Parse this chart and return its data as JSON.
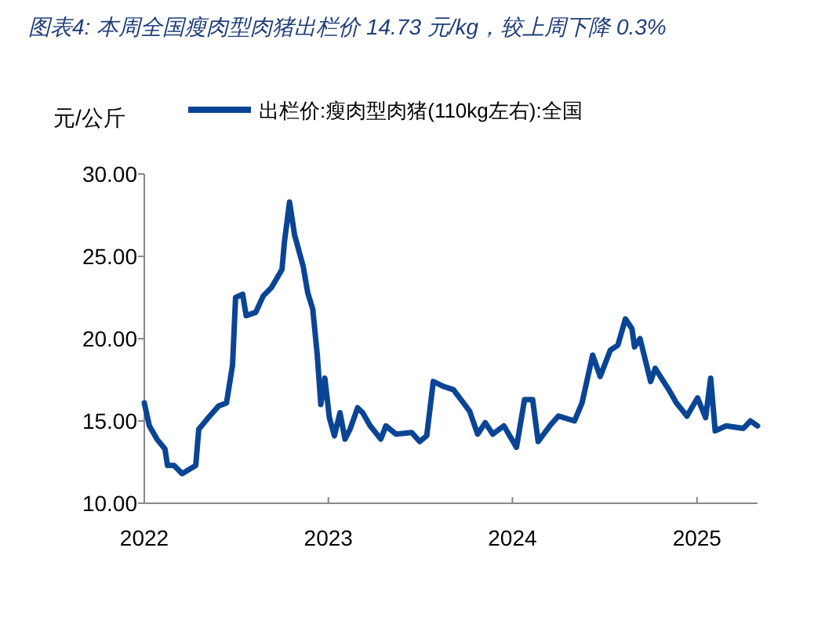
{
  "chart_data": {
    "type": "line",
    "title": "图表4:  本周全国瘦肉型肉猪出栏价 14.73 元/kg，较上周下降 0.3%",
    "ylabel": "元/公斤",
    "legend": "top",
    "x": [
      "2022-01-01",
      "2022-01-11",
      "2022-01-26",
      "2022-02-11",
      "2022-02-16",
      "2022-03-01",
      "2022-03-17",
      "2022-04-13",
      "2022-04-19",
      "2022-05-08",
      "2022-05-28",
      "2022-06-13",
      "2022-06-25",
      "2022-07-01",
      "2022-07-15",
      "2022-07-22",
      "2022-08-10",
      "2022-08-25",
      "2022-09-10",
      "2022-10-01",
      "2022-10-06",
      "2022-10-16",
      "2022-10-26",
      "2022-11-12",
      "2022-11-21",
      "2022-12-01",
      "2022-12-10",
      "2022-12-17",
      "2022-12-25",
      "2023-01-03",
      "2023-01-13",
      "2023-01-24",
      "2023-02-03",
      "2023-02-13",
      "2023-02-28",
      "2023-03-10",
      "2023-03-25",
      "2023-04-15",
      "2023-04-25",
      "2023-05-15",
      "2023-06-15",
      "2023-07-01",
      "2023-07-15",
      "2023-07-28",
      "2023-08-17",
      "2023-09-06",
      "2023-10-08",
      "2023-10-24",
      "2023-11-08",
      "2023-11-23",
      "2023-12-15",
      "2024-01-09",
      "2024-01-25",
      "2024-02-10",
      "2024-02-21",
      "2024-03-15",
      "2024-04-01",
      "2024-05-03",
      "2024-05-18",
      "2024-06-08",
      "2024-06-23",
      "2024-07-13",
      "2024-07-28",
      "2024-08-12",
      "2024-08-25",
      "2024-08-30",
      "2024-09-10",
      "2024-10-01",
      "2024-10-10",
      "2024-11-06",
      "2024-11-21",
      "2024-12-12",
      "2025-01-02",
      "2025-01-18",
      "2025-01-28",
      "2025-02-06",
      "2025-02-28",
      "2025-04-03",
      "2025-04-17",
      "2025-05-01"
    ],
    "series": [
      {
        "name": "出栏价:瘦肉型肉猪(110kg左右):全国",
        "color": "#0a4595",
        "values": [
          16.1,
          14.7,
          13.9,
          13.3,
          12.3,
          12.3,
          11.8,
          12.3,
          14.5,
          15.2,
          15.9,
          16.1,
          18.4,
          22.5,
          22.7,
          21.4,
          21.6,
          22.6,
          23.1,
          24.2,
          25.9,
          28.3,
          26.3,
          24.4,
          22.8,
          21.8,
          19.0,
          16.0,
          17.6,
          15.2,
          14.1,
          15.5,
          13.9,
          14.5,
          15.8,
          15.5,
          14.7,
          13.9,
          14.7,
          14.2,
          14.3,
          13.75,
          14.1,
          17.4,
          17.1,
          16.9,
          15.6,
          14.2,
          14.9,
          14.2,
          14.7,
          13.4,
          16.3,
          16.3,
          13.75,
          14.7,
          15.3,
          15.0,
          16.1,
          19.0,
          17.7,
          19.3,
          19.6,
          21.2,
          20.6,
          19.5,
          20.0,
          17.4,
          18.2,
          16.9,
          16.1,
          15.3,
          16.4,
          15.2,
          17.6,
          14.4,
          14.7,
          14.55,
          15.0,
          14.7
        ]
      }
    ],
    "xlim": [
      "2022-01-01",
      "2025-05-01"
    ],
    "xticks": [
      {
        "value": "2022-01-01",
        "label": "2022"
      },
      {
        "value": "2023-01-01",
        "label": "2023"
      },
      {
        "value": "2024-01-01",
        "label": "2024"
      },
      {
        "value": "2025-01-01",
        "label": "2025"
      }
    ],
    "ylim": [
      10,
      30
    ],
    "yticks": [
      {
        "value": 10,
        "label": "10.00"
      },
      {
        "value": 15,
        "label": "15.00"
      },
      {
        "value": 20,
        "label": "20.00"
      },
      {
        "value": 25,
        "label": "25.00"
      },
      {
        "value": 30,
        "label": "30.00"
      }
    ]
  }
}
